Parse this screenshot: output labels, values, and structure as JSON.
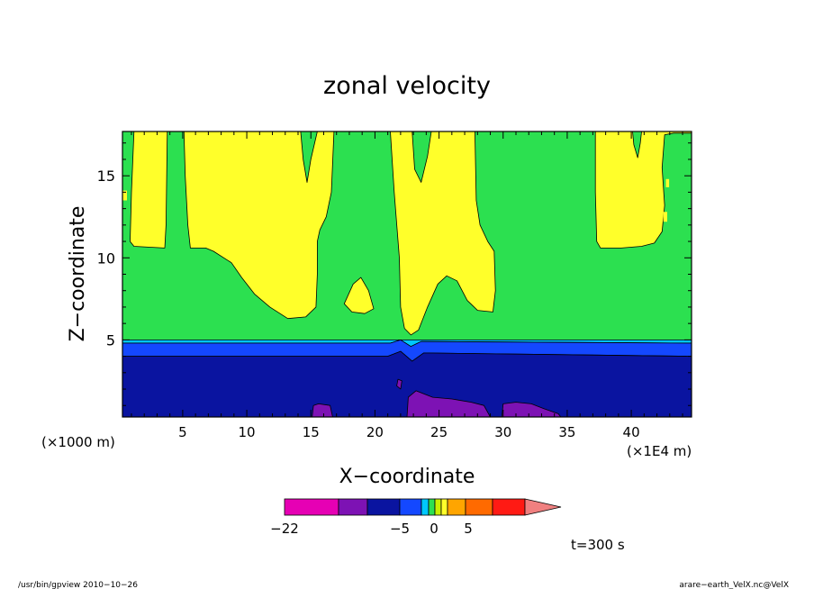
{
  "chart_data": {
    "type": "heatmap",
    "title": "zonal velocity",
    "xlabel": "X−coordinate",
    "ylabel": "Z−coordinate",
    "x_unit_left": "(×1000 m)",
    "x_unit_right": "(×1E4 m)",
    "xlim": [
      0.3,
      44.7
    ],
    "ylim": [
      0.3,
      17.7
    ],
    "x_ticks": [
      5,
      10,
      15,
      20,
      25,
      30,
      35,
      40
    ],
    "x_tick_labels": [
      "5",
      "10",
      "15",
      "20",
      "25",
      "30",
      "35",
      "40"
    ],
    "y_ticks": [
      5,
      10,
      15
    ],
    "y_tick_labels": [
      "5",
      "10",
      "15"
    ],
    "time_label": "t=300 s",
    "colorbar": {
      "labels": [
        {
          "value": -22,
          "text": "−22"
        },
        {
          "value": -5,
          "text": "−5"
        },
        {
          "value": 0,
          "text": "0"
        },
        {
          "value": 5,
          "text": "5"
        }
      ],
      "colors": [
        "#e600b4",
        "#7d12b4",
        "#0a14a0",
        "#1448ff",
        "#00c8ff",
        "#2ce050",
        "#c8f000",
        "#ffff2a",
        "#ffa500",
        "#ff6a00",
        "#ff1a14",
        "#f08080"
      ]
    },
    "regions": [
      {
        "color": "#2ce050",
        "poly": [
          [
            0.3,
            5
          ],
          [
            44.7,
            5
          ],
          [
            44.7,
            17.7
          ],
          [
            0.3,
            17.7
          ]
        ]
      },
      {
        "color": "#00c8ff",
        "poly": [
          [
            0.3,
            4.8
          ],
          [
            21.2,
            4.8
          ],
          [
            22,
            5
          ],
          [
            22.8,
            4.6
          ],
          [
            23.6,
            4.9
          ],
          [
            44.7,
            4.8
          ],
          [
            44.7,
            5
          ],
          [
            0.3,
            5
          ]
        ]
      },
      {
        "color": "#1448ff",
        "poly": [
          [
            0.3,
            4
          ],
          [
            21,
            4
          ],
          [
            22,
            4.3
          ],
          [
            22.9,
            3.7
          ],
          [
            23.8,
            4.2
          ],
          [
            44.7,
            4
          ],
          [
            44.7,
            4.8
          ],
          [
            23.6,
            4.9
          ],
          [
            22.8,
            4.6
          ],
          [
            22,
            5
          ],
          [
            21.2,
            4.8
          ],
          [
            0.3,
            4.8
          ]
        ]
      },
      {
        "color": "#0a14a0",
        "poly": [
          [
            0.3,
            0.3
          ],
          [
            44.7,
            0.3
          ],
          [
            44.7,
            4
          ],
          [
            23.8,
            4.2
          ],
          [
            22.9,
            3.7
          ],
          [
            22,
            4.3
          ],
          [
            21,
            4
          ],
          [
            0.3,
            4
          ]
        ]
      },
      {
        "color": "#7d12b4",
        "poly": [
          [
            15.1,
            0.3
          ],
          [
            15.2,
            1
          ],
          [
            15.6,
            1.1
          ],
          [
            16.5,
            1
          ],
          [
            16.7,
            0.3
          ]
        ]
      },
      {
        "color": "#7d12b4",
        "poly": [
          [
            22.5,
            0.3
          ],
          [
            22.6,
            1.5
          ],
          [
            23.2,
            1.9
          ],
          [
            24.5,
            1.5
          ],
          [
            26,
            1.4
          ],
          [
            27.5,
            1.2
          ],
          [
            28.5,
            1
          ],
          [
            29,
            0.3
          ]
        ]
      },
      {
        "color": "#7d12b4",
        "poly": [
          [
            29.9,
            0.3
          ],
          [
            30,
            1.1
          ],
          [
            31,
            1.2
          ],
          [
            32.2,
            1.1
          ],
          [
            33.2,
            0.8
          ],
          [
            34.3,
            0.5
          ],
          [
            34.5,
            0.3
          ]
        ]
      },
      {
        "color": "#7d12b4",
        "poly": [
          [
            21.7,
            2.2
          ],
          [
            21.8,
            2.6
          ],
          [
            22.1,
            2.5
          ],
          [
            22,
            2
          ]
        ]
      },
      {
        "color": "#ffff2a",
        "poly": [
          [
            1.2,
            17.7
          ],
          [
            1,
            14
          ],
          [
            0.9,
            11
          ],
          [
            1.2,
            10.7
          ],
          [
            3.6,
            10.6
          ],
          [
            3.7,
            12
          ],
          [
            3.8,
            17.7
          ]
        ]
      },
      {
        "color": "#ffff2a",
        "poly": [
          [
            5.1,
            17.7
          ],
          [
            5.2,
            15
          ],
          [
            5.4,
            12
          ],
          [
            5.6,
            10.6
          ],
          [
            6.8,
            10.6
          ],
          [
            7.4,
            10.4
          ],
          [
            8.8,
            9.7
          ],
          [
            9.6,
            8.8
          ],
          [
            10.6,
            7.8
          ],
          [
            11.8,
            7
          ],
          [
            13.2,
            6.3
          ],
          [
            14.6,
            6.4
          ],
          [
            15.4,
            7
          ],
          [
            15.5,
            9
          ],
          [
            15.5,
            11
          ],
          [
            15.7,
            11.7
          ],
          [
            16.2,
            12.5
          ],
          [
            16.6,
            14
          ],
          [
            16.8,
            17.7
          ],
          [
            15.5,
            17.7
          ],
          [
            15,
            16
          ],
          [
            14.7,
            14.6
          ],
          [
            14.4,
            16
          ],
          [
            14.2,
            17.7
          ]
        ]
      },
      {
        "color": "#ffff2a",
        "poly": [
          [
            21.2,
            17.7
          ],
          [
            21.5,
            14
          ],
          [
            21.9,
            10
          ],
          [
            22,
            7
          ],
          [
            22.3,
            5.7
          ],
          [
            22.8,
            5.3
          ],
          [
            23.4,
            5.6
          ],
          [
            24.1,
            7
          ],
          [
            24.9,
            8.4
          ],
          [
            25.6,
            8.9
          ],
          [
            26.4,
            8.6
          ],
          [
            27.2,
            7.4
          ],
          [
            28,
            6.8
          ],
          [
            29.2,
            6.7
          ],
          [
            29.4,
            8
          ],
          [
            29.3,
            10.4
          ],
          [
            28.8,
            11
          ],
          [
            28.2,
            12
          ],
          [
            27.9,
            13.5
          ],
          [
            27.8,
            17.7
          ],
          [
            24.4,
            17.7
          ],
          [
            24.1,
            16.2
          ],
          [
            23.6,
            14.6
          ],
          [
            23.1,
            15.4
          ],
          [
            22.9,
            17.7
          ]
        ]
      },
      {
        "color": "#ffff2a",
        "poly": [
          [
            17.6,
            7.2
          ],
          [
            18.3,
            8.4
          ],
          [
            18.9,
            8.8
          ],
          [
            19.5,
            8
          ],
          [
            19.9,
            6.9
          ],
          [
            19.2,
            6.6
          ],
          [
            18.2,
            6.7
          ]
        ]
      },
      {
        "color": "#ffff2a",
        "poly": [
          [
            37.2,
            17.7
          ],
          [
            37.2,
            14
          ],
          [
            37.3,
            11
          ],
          [
            37.6,
            10.6
          ],
          [
            39.2,
            10.6
          ],
          [
            40.8,
            10.7
          ],
          [
            41.8,
            10.9
          ],
          [
            42.4,
            11.6
          ],
          [
            42.6,
            13.2
          ],
          [
            42.4,
            15.5
          ],
          [
            42.6,
            17.5
          ],
          [
            43.3,
            17.6
          ],
          [
            44.7,
            17.6
          ],
          [
            44.7,
            17.7
          ],
          [
            40.8,
            17.7
          ],
          [
            40.7,
            17
          ],
          [
            40.5,
            16.1
          ],
          [
            40.2,
            16.9
          ],
          [
            40.1,
            17.7
          ]
        ]
      }
    ],
    "spots": [
      {
        "color": "#ffff2a",
        "x": 0.3,
        "y": 13.5,
        "w": 0.35,
        "h": 0.6
      },
      {
        "color": "#ffff2a",
        "x": 42.5,
        "y": 12.2,
        "w": 0.3,
        "h": 0.6
      },
      {
        "color": "#ffff2a",
        "x": 42.7,
        "y": 14.3,
        "w": 0.25,
        "h": 0.5
      }
    ]
  },
  "footer": {
    "left": "/usr/bin/gpview  2010−10−26",
    "right": "arare−earth_VelX.nc@VelX"
  }
}
